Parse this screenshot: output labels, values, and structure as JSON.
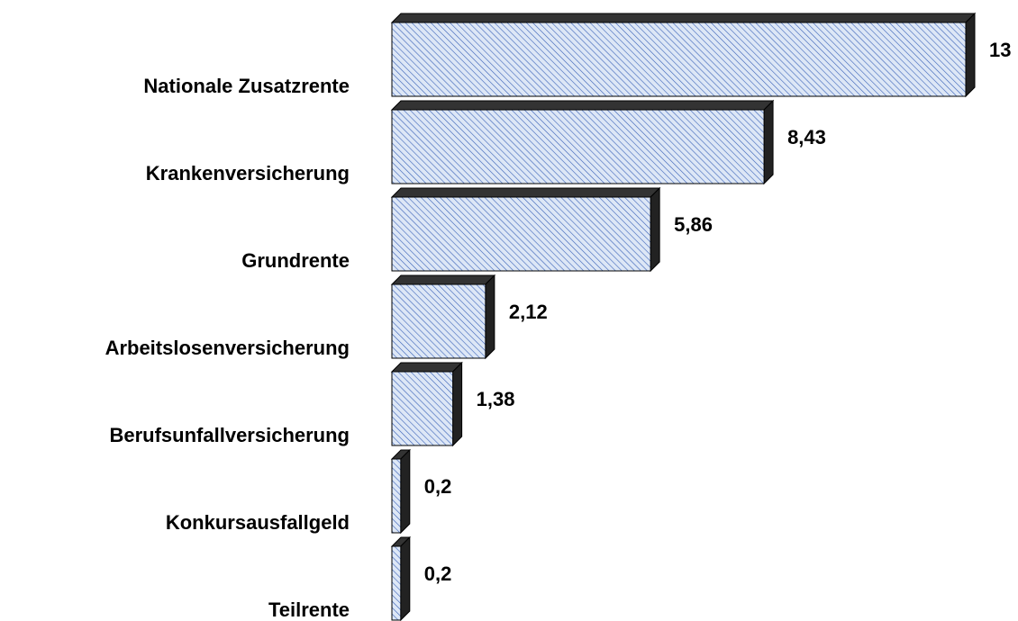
{
  "chart_data": {
    "type": "barh",
    "categories": [
      "Nationale Zusatzrente",
      "Krankenversicherung",
      "Grundrente",
      "Arbeitslosenversicherung",
      "Berufsunfallversicherung",
      "Konkursausfallgeld",
      "Teilrente"
    ],
    "values": [
      13,
      8.43,
      5.86,
      2.12,
      1.38,
      0.2,
      0.2
    ],
    "value_labels": [
      "13",
      "8,43",
      "5,86",
      "2,12",
      "1,38",
      "0,2",
      "0,2"
    ],
    "color": "#dde7f6",
    "xlim": [
      0,
      13
    ]
  }
}
